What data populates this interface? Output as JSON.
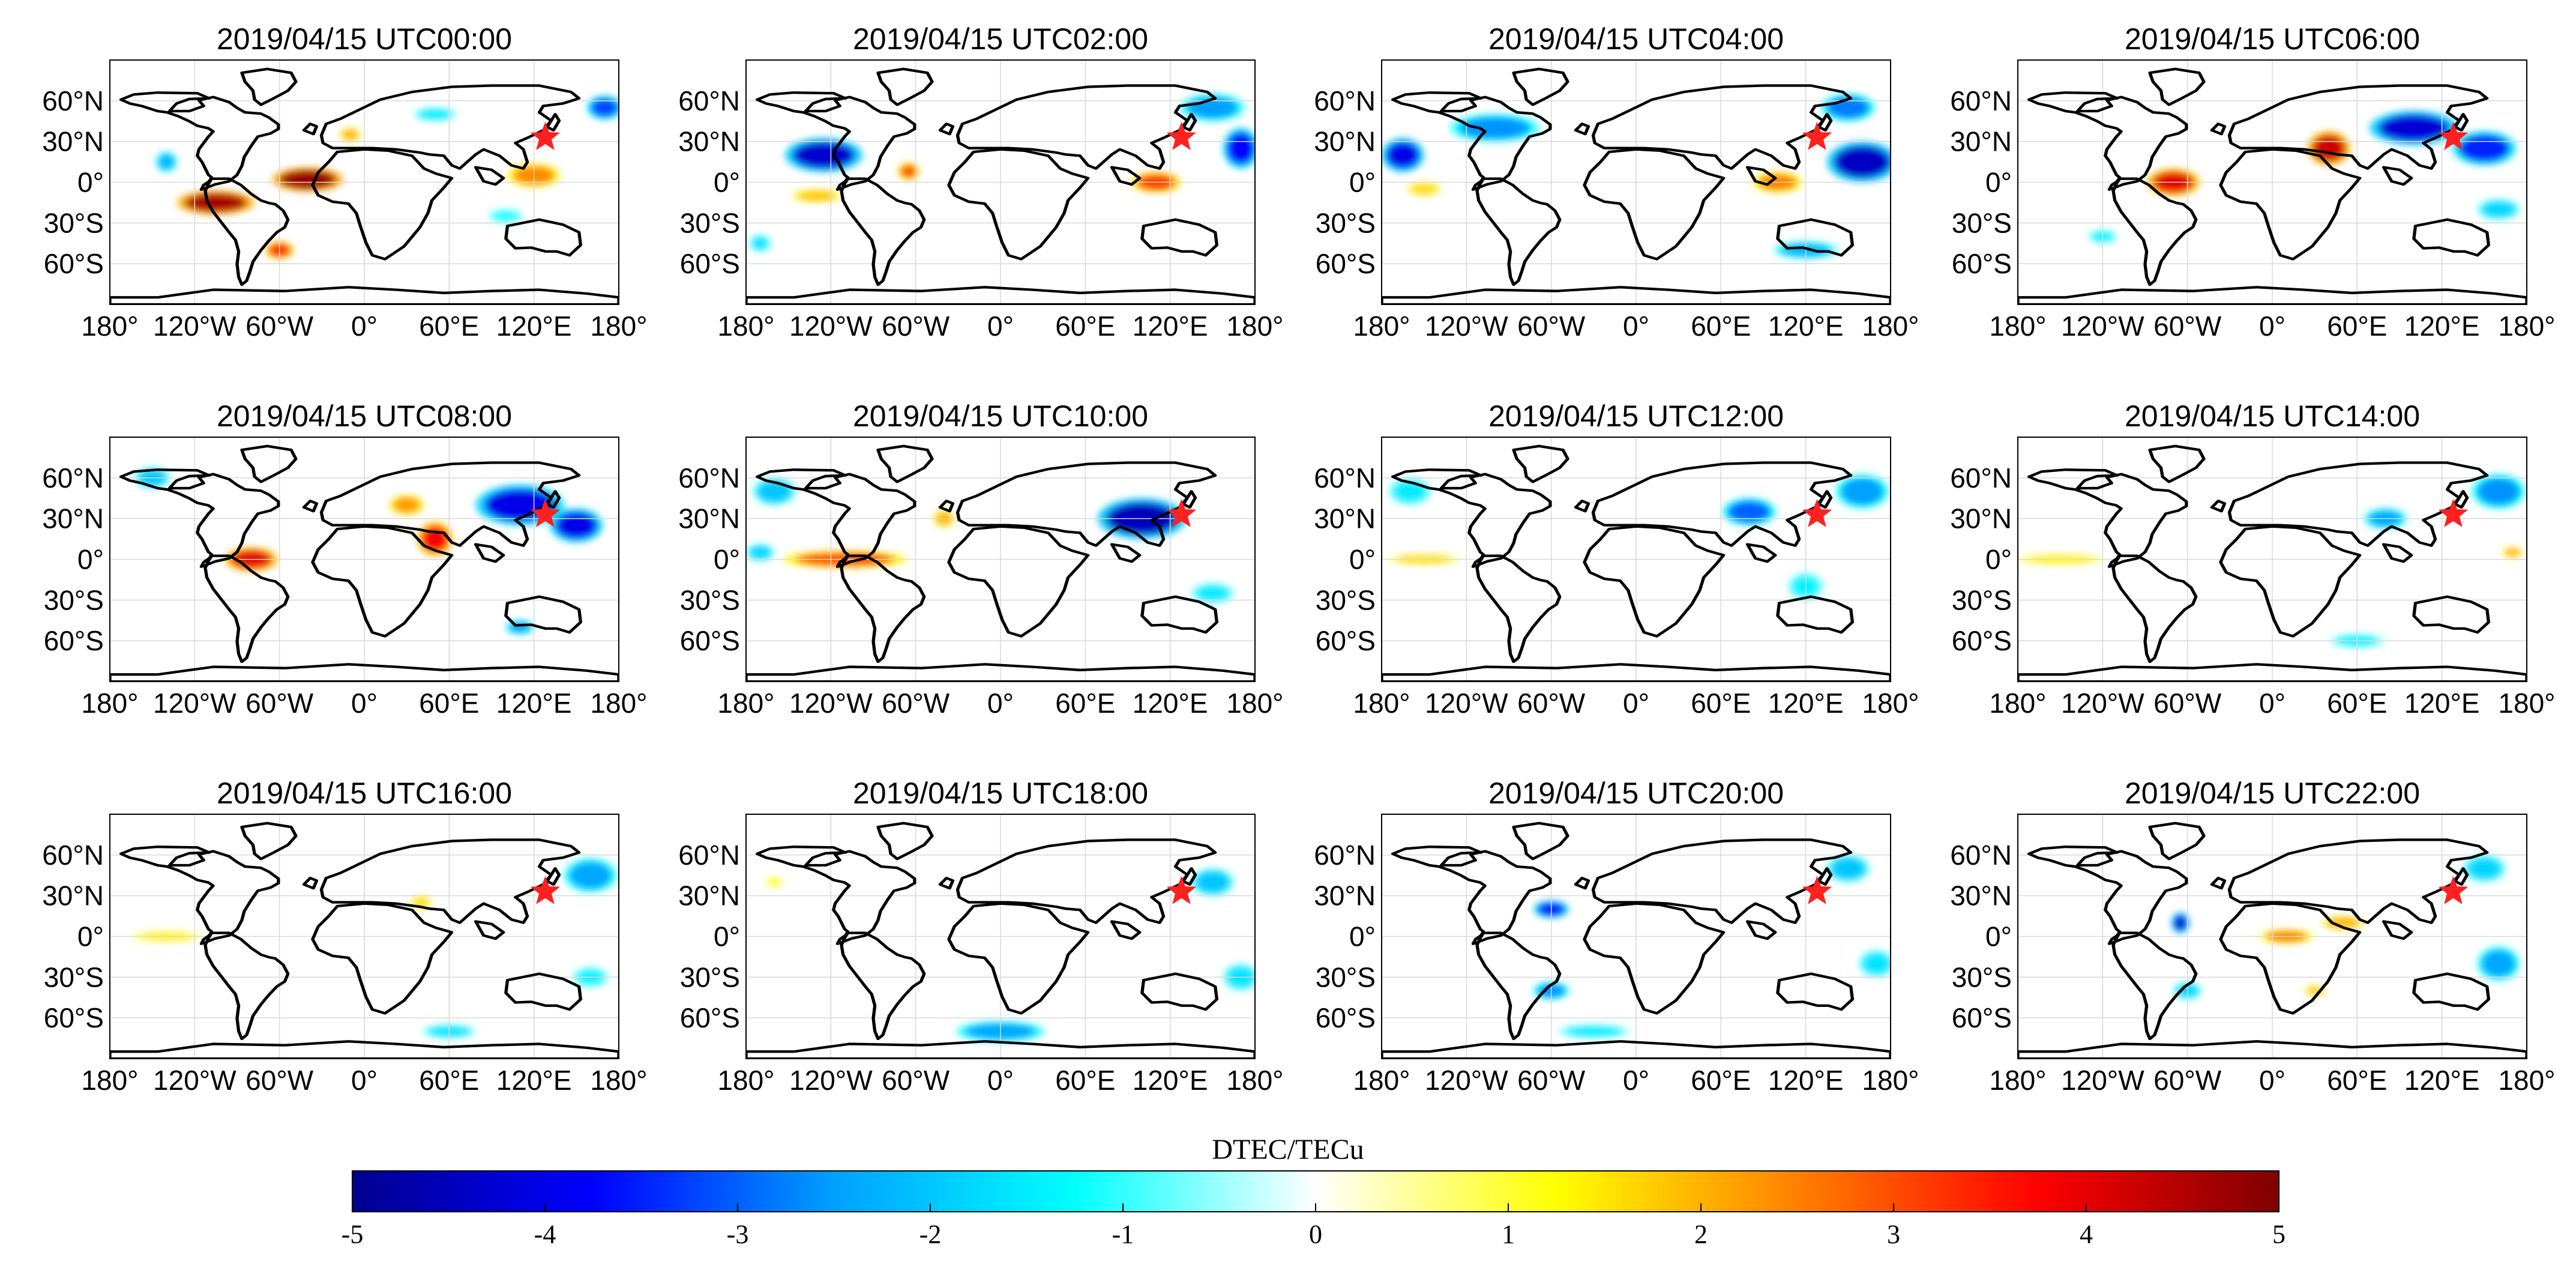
{
  "chart_data": {
    "type": "heatmap",
    "layout": "3x4 grid of global maps",
    "colorbar": {
      "label": "DTEC/TECu",
      "range": [
        -5,
        5
      ],
      "ticks": [
        "-5",
        "-4",
        "-3",
        "-2",
        "-1",
        "0",
        "1",
        "2",
        "3",
        "4",
        "5"
      ],
      "colormap": [
        "#00008f",
        "#0000ff",
        "#00a0ff",
        "#00ffff",
        "#ffffff",
        "#ffff00",
        "#ff8000",
        "#ff0000",
        "#800000"
      ]
    },
    "x_ticks": [
      "180°",
      "120°W",
      "60°W",
      "0°",
      "60°E",
      "120°E",
      "180°"
    ],
    "y_ticks": [
      "60°N",
      "30°N",
      "0°",
      "30°S",
      "60°S"
    ],
    "marker": {
      "label": "epicenter",
      "lon": 128,
      "lat": 33,
      "color": "#ff2020"
    },
    "panels": [
      {
        "title": "2019/04/15 UTC00:00",
        "anomalies": [
          {
            "lon": -105,
            "lat": -15,
            "v": 4.6,
            "rx": 22,
            "ry": 7
          },
          {
            "lon": -40,
            "lat": 2,
            "v": 4.8,
            "rx": 20,
            "ry": 7
          },
          {
            "lon": -60,
            "lat": -50,
            "v": 3.5,
            "rx": 8,
            "ry": 5
          },
          {
            "lon": 120,
            "lat": 5,
            "v": 2.4,
            "rx": 15,
            "ry": 7
          },
          {
            "lon": -10,
            "lat": 35,
            "v": 2.0,
            "rx": 6,
            "ry": 4
          },
          {
            "lon": 170,
            "lat": 55,
            "v": -3.2,
            "rx": 10,
            "ry": 7
          },
          {
            "lon": -140,
            "lat": 15,
            "v": -2.2,
            "rx": 6,
            "ry": 6
          },
          {
            "lon": 50,
            "lat": 50,
            "v": -1.5,
            "rx": 12,
            "ry": 4
          },
          {
            "lon": 100,
            "lat": -25,
            "v": -1.2,
            "rx": 10,
            "ry": 4
          }
        ]
      },
      {
        "title": "2019/04/15 UTC02:00",
        "anomalies": [
          {
            "lon": -125,
            "lat": 20,
            "v": -4.3,
            "rx": 22,
            "ry": 10
          },
          {
            "lon": 170,
            "lat": 25,
            "v": -3.8,
            "rx": 10,
            "ry": 12
          },
          {
            "lon": 150,
            "lat": 55,
            "v": -2.5,
            "rx": 18,
            "ry": 8
          },
          {
            "lon": 110,
            "lat": 0,
            "v": 3.2,
            "rx": 14,
            "ry": 6
          },
          {
            "lon": -65,
            "lat": 8,
            "v": 3.0,
            "rx": 6,
            "ry": 5
          },
          {
            "lon": -130,
            "lat": -10,
            "v": 1.8,
            "rx": 14,
            "ry": 4
          },
          {
            "lon": -170,
            "lat": -45,
            "v": -1.6,
            "rx": 6,
            "ry": 5
          }
        ]
      },
      {
        "title": "2019/04/15 UTC04:00",
        "anomalies": [
          {
            "lon": 160,
            "lat": 15,
            "v": -4.4,
            "rx": 20,
            "ry": 12
          },
          {
            "lon": -165,
            "lat": 20,
            "v": -4.0,
            "rx": 12,
            "ry": 10
          },
          {
            "lon": -100,
            "lat": 40,
            "v": -2.6,
            "rx": 25,
            "ry": 8
          },
          {
            "lon": 150,
            "lat": 55,
            "v": -2.8,
            "rx": 15,
            "ry": 8
          },
          {
            "lon": 120,
            "lat": -50,
            "v": -2.2,
            "rx": 18,
            "ry": 5
          },
          {
            "lon": 100,
            "lat": 0,
            "v": 2.5,
            "rx": 14,
            "ry": 6
          },
          {
            "lon": -150,
            "lat": -5,
            "v": 1.6,
            "rx": 10,
            "ry": 4
          }
        ]
      },
      {
        "title": "2019/04/15 UTC06:00",
        "anomalies": [
          {
            "lon": -70,
            "lat": 0,
            "v": 4.0,
            "rx": 15,
            "ry": 8
          },
          {
            "lon": 40,
            "lat": 25,
            "v": 4.2,
            "rx": 12,
            "ry": 10
          },
          {
            "lon": 100,
            "lat": 40,
            "v": -4.2,
            "rx": 25,
            "ry": 10
          },
          {
            "lon": 150,
            "lat": 25,
            "v": -3.5,
            "rx": 18,
            "ry": 10
          },
          {
            "lon": 160,
            "lat": -20,
            "v": -1.8,
            "rx": 12,
            "ry": 6
          },
          {
            "lon": -120,
            "lat": -40,
            "v": -1.4,
            "rx": 8,
            "ry": 4
          }
        ]
      },
      {
        "title": "2019/04/15 UTC08:00",
        "anomalies": [
          {
            "lon": -80,
            "lat": 0,
            "v": 4.0,
            "rx": 15,
            "ry": 7
          },
          {
            "lon": 50,
            "lat": 15,
            "v": 3.8,
            "rx": 10,
            "ry": 10
          },
          {
            "lon": 30,
            "lat": 40,
            "v": 2.2,
            "rx": 10,
            "ry": 6
          },
          {
            "lon": 110,
            "lat": 40,
            "v": -4.0,
            "rx": 25,
            "ry": 12
          },
          {
            "lon": 150,
            "lat": 25,
            "v": -4.0,
            "rx": 15,
            "ry": 10
          },
          {
            "lon": 110,
            "lat": -50,
            "v": -2.5,
            "rx": 8,
            "ry": 4
          },
          {
            "lon": -150,
            "lat": 60,
            "v": -2.0,
            "rx": 10,
            "ry": 6
          }
        ]
      },
      {
        "title": "2019/04/15 UTC10:00",
        "anomalies": [
          {
            "lon": 100,
            "lat": 30,
            "v": -4.5,
            "rx": 25,
            "ry": 12
          },
          {
            "lon": -110,
            "lat": 0,
            "v": 3.0,
            "rx": 35,
            "ry": 5
          },
          {
            "lon": -40,
            "lat": 30,
            "v": 2.0,
            "rx": 6,
            "ry": 5
          },
          {
            "lon": -160,
            "lat": 50,
            "v": -2.0,
            "rx": 12,
            "ry": 8
          },
          {
            "lon": -170,
            "lat": 5,
            "v": -1.8,
            "rx": 8,
            "ry": 5
          },
          {
            "lon": 150,
            "lat": -25,
            "v": -1.5,
            "rx": 12,
            "ry": 6
          }
        ]
      },
      {
        "title": "2019/04/15 UTC12:00",
        "anomalies": [
          {
            "lon": 80,
            "lat": 35,
            "v": -3.0,
            "rx": 15,
            "ry": 8
          },
          {
            "lon": 160,
            "lat": 50,
            "v": -2.5,
            "rx": 15,
            "ry": 10
          },
          {
            "lon": -150,
            "lat": 0,
            "v": 1.6,
            "rx": 20,
            "ry": 3
          },
          {
            "lon": 120,
            "lat": -20,
            "v": -1.4,
            "rx": 10,
            "ry": 8
          },
          {
            "lon": -160,
            "lat": 50,
            "v": -1.5,
            "rx": 12,
            "ry": 8
          }
        ]
      },
      {
        "title": "2019/04/15 UTC14:00",
        "anomalies": [
          {
            "lon": 80,
            "lat": 30,
            "v": -2.4,
            "rx": 12,
            "ry": 6
          },
          {
            "lon": 160,
            "lat": 50,
            "v": -2.6,
            "rx": 15,
            "ry": 10
          },
          {
            "lon": -150,
            "lat": 0,
            "v": 1.4,
            "rx": 25,
            "ry": 3
          },
          {
            "lon": 170,
            "lat": 5,
            "v": 2.0,
            "rx": 6,
            "ry": 3
          },
          {
            "lon": 60,
            "lat": -60,
            "v": -1.4,
            "rx": 15,
            "ry": 4
          }
        ]
      },
      {
        "title": "2019/04/15 UTC16:00",
        "anomalies": [
          {
            "lon": 160,
            "lat": 45,
            "v": -2.4,
            "rx": 15,
            "ry": 10
          },
          {
            "lon": -140,
            "lat": 0,
            "v": 1.4,
            "rx": 20,
            "ry": 3
          },
          {
            "lon": 40,
            "lat": 25,
            "v": 1.6,
            "rx": 6,
            "ry": 4
          },
          {
            "lon": 60,
            "lat": -70,
            "v": -1.6,
            "rx": 15,
            "ry": 4
          },
          {
            "lon": 160,
            "lat": -30,
            "v": -1.4,
            "rx": 10,
            "ry": 6
          }
        ]
      },
      {
        "title": "2019/04/15 UTC18:00",
        "anomalies": [
          {
            "lon": 0,
            "lat": -70,
            "v": -2.4,
            "rx": 25,
            "ry": 6
          },
          {
            "lon": 150,
            "lat": 40,
            "v": -2.0,
            "rx": 12,
            "ry": 8
          },
          {
            "lon": 170,
            "lat": -30,
            "v": -1.6,
            "rx": 10,
            "ry": 8
          },
          {
            "lon": -160,
            "lat": 40,
            "v": 1.2,
            "rx": 5,
            "ry": 3
          }
        ]
      },
      {
        "title": "2019/04/15 UTC20:00",
        "anomalies": [
          {
            "lon": -60,
            "lat": 20,
            "v": -3.8,
            "rx": 10,
            "ry": 5
          },
          {
            "lon": -60,
            "lat": -40,
            "v": -2.6,
            "rx": 10,
            "ry": 5
          },
          {
            "lon": 150,
            "lat": 50,
            "v": -2.0,
            "rx": 12,
            "ry": 8
          },
          {
            "lon": 170,
            "lat": -20,
            "v": -1.6,
            "rx": 10,
            "ry": 8
          },
          {
            "lon": -30,
            "lat": -70,
            "v": -1.5,
            "rx": 20,
            "ry": 4
          }
        ]
      },
      {
        "title": "2019/04/15 UTC22:00",
        "anomalies": [
          {
            "lon": -65,
            "lat": 10,
            "v": -4.2,
            "rx": 5,
            "ry": 6
          },
          {
            "lon": 10,
            "lat": 0,
            "v": 2.5,
            "rx": 15,
            "ry": 4
          },
          {
            "lon": 50,
            "lat": 10,
            "v": 2.0,
            "rx": 12,
            "ry": 4
          },
          {
            "lon": 160,
            "lat": -20,
            "v": -2.4,
            "rx": 12,
            "ry": 10
          },
          {
            "lon": -60,
            "lat": -40,
            "v": -1.8,
            "rx": 8,
            "ry": 5
          },
          {
            "lon": 30,
            "lat": -40,
            "v": 1.8,
            "rx": 6,
            "ry": 3
          },
          {
            "lon": 150,
            "lat": 50,
            "v": -1.8,
            "rx": 12,
            "ry": 8
          }
        ]
      }
    ]
  }
}
